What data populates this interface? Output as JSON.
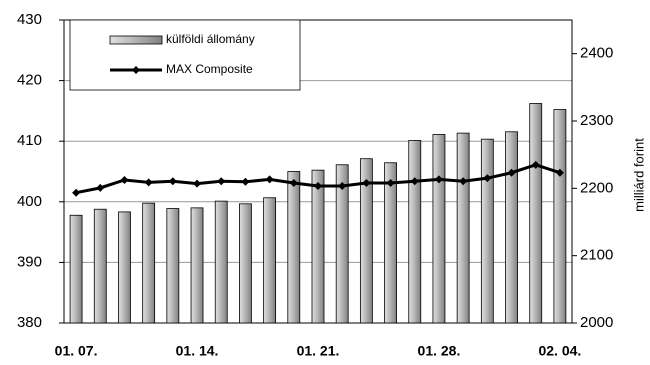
{
  "chart_data": {
    "type": "bar_line",
    "categories": [
      "01. 07.",
      null,
      null,
      null,
      null,
      "01. 14.",
      null,
      null,
      null,
      null,
      "01. 21.",
      null,
      null,
      null,
      null,
      "01. 28.",
      null,
      null,
      null,
      null,
      "02. 04."
    ],
    "series": [
      {
        "name": "külföldi állomány",
        "color": "#b3b3b3",
        "axis": "y2",
        "type": "bar",
        "values": [
          2160,
          2169,
          2165,
          2178,
          2170,
          2171,
          2181,
          2177,
          2186,
          2225,
          2227,
          2235,
          2244,
          2238,
          2271,
          2280,
          2282,
          2273,
          2284,
          2326,
          2317
        ]
      },
      {
        "name": "MAX Composite",
        "color": "#000000",
        "axis": "y",
        "type": "line",
        "values": [
          401.5,
          402.3,
          403.6,
          403.2,
          403.4,
          403.0,
          403.4,
          403.3,
          403.7,
          403.1,
          402.6,
          402.6,
          403.1,
          403.1,
          403.4,
          403.7,
          403.4,
          403.9,
          404.8,
          406.1,
          404.8
        ]
      }
    ],
    "ylim": [
      380,
      430
    ],
    "yticks": [
      380,
      390,
      400,
      410,
      420,
      430
    ],
    "y2lim": [
      2000,
      2450
    ],
    "y2ticks": [
      2000,
      2100,
      2200,
      2300,
      2400
    ],
    "y2label": "milliárd forint",
    "grid": true,
    "legend": "top-left"
  }
}
